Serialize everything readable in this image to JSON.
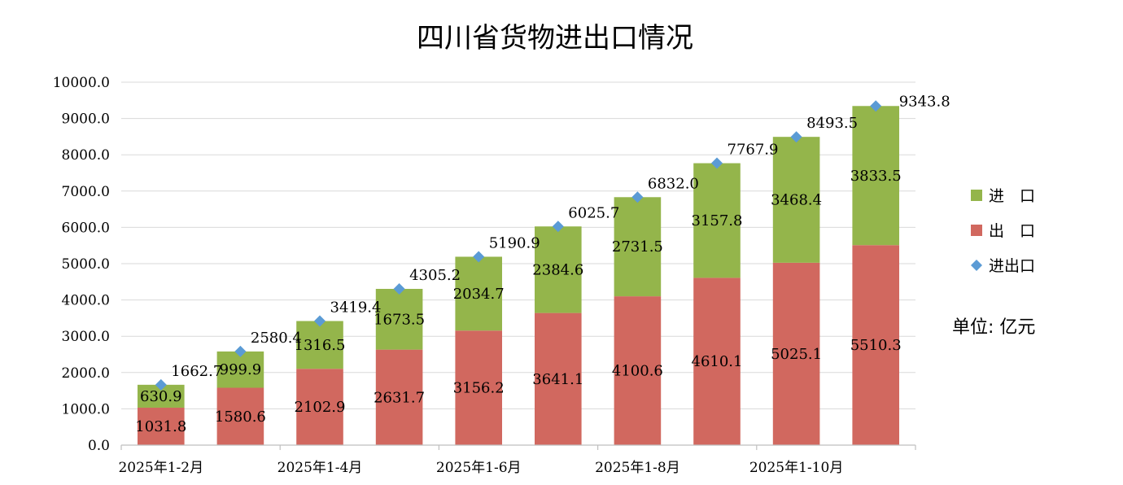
{
  "chart_data": {
    "type": "bar",
    "stacked": true,
    "title": "四川省货物进出口情况",
    "unit_note": "单位: 亿元",
    "categories": [
      "2025年1-2月",
      "",
      "2025年1-4月",
      "",
      "2025年1-6月",
      "",
      "2025年1-8月",
      "",
      "2025年1-10月",
      ""
    ],
    "series": [
      {
        "name": "出　口",
        "kind": "bar",
        "color": "#d1685f",
        "values": [
          1031.8,
          1580.6,
          2102.9,
          2631.7,
          3156.2,
          3641.1,
          4100.6,
          4610.1,
          5025.1,
          5510.3
        ],
        "labels": [
          "1031.8",
          "1580.6",
          "2102.9",
          "2631.7",
          "3156.2",
          "3641.1",
          "4100.6",
          "4610.1",
          "5025.1",
          "5510.3"
        ]
      },
      {
        "name": "进　口",
        "kind": "bar",
        "color": "#94b54b",
        "values": [
          630.9,
          999.9,
          1316.5,
          1673.5,
          2034.7,
          2384.6,
          2731.5,
          3157.8,
          3468.4,
          3833.5
        ],
        "labels": [
          "630.9",
          "999.9",
          "1316.5",
          "1673.5",
          "2034.7",
          "2384.6",
          "2731.5",
          "3157.8",
          "3468.4",
          "3833.5"
        ]
      },
      {
        "name": "进出口",
        "kind": "marker",
        "color": "#5b9bd5",
        "values": [
          1662.7,
          2580.4,
          3419.4,
          4305.2,
          5190.9,
          6025.7,
          6832.0,
          7767.9,
          8493.5,
          9343.8
        ],
        "labels": [
          "1662.7",
          "2580.4",
          "3419.4",
          "4305.2",
          "5190.9",
          "6025.7",
          "6832.0",
          "7767.9",
          "8493.5",
          "9343.8"
        ]
      }
    ],
    "ylim": [
      0,
      10000
    ],
    "y_ticks": [
      "0.0",
      "1000.0",
      "2000.0",
      "3000.0",
      "4000.0",
      "5000.0",
      "6000.0",
      "7000.0",
      "8000.0",
      "9000.0",
      "10000.0"
    ],
    "y_tick_values": [
      0,
      1000,
      2000,
      3000,
      4000,
      5000,
      6000,
      7000,
      8000,
      9000,
      10000
    ],
    "grid": true,
    "legend": {
      "position": "right",
      "order": [
        "进　口",
        "出　口",
        "进出口"
      ]
    }
  }
}
